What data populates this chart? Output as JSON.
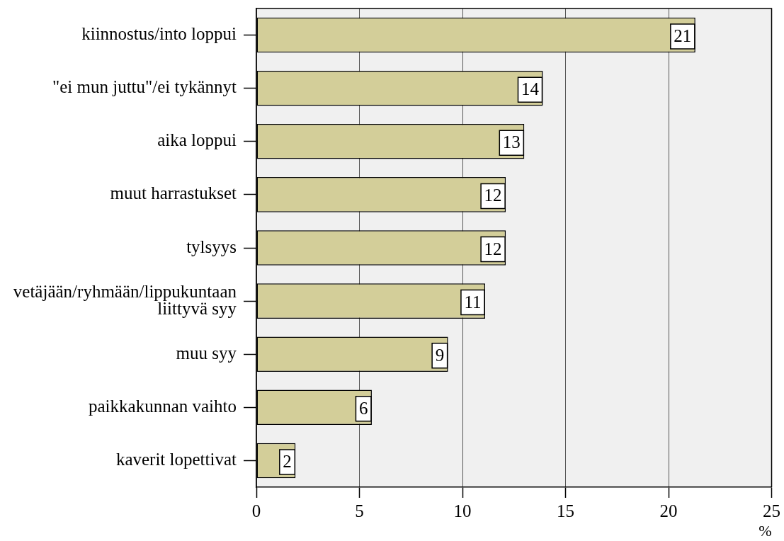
{
  "chart_data": {
    "type": "bar",
    "orientation": "horizontal",
    "categories": [
      "kiinnostus/into loppui",
      "\"ei mun juttu\"/ei tykännyt",
      "aika loppui",
      "muut harrastukset",
      "tylsyys",
      "vetäjään/ryhmään/lippukuntaan liittyvä syy",
      "muu syy",
      "paikkakunnan vaihto",
      "kaverit lopettivat"
    ],
    "values": [
      21.3,
      13.9,
      13.0,
      12.1,
      12.1,
      11.1,
      9.3,
      5.6,
      1.9
    ],
    "value_labels": [
      "21",
      "14",
      "13",
      "12",
      "12",
      "11",
      "9",
      "6",
      "2"
    ],
    "color": "#d3ce99",
    "xlabel": "%",
    "xlim": [
      0,
      25
    ],
    "xticks": [
      0,
      5,
      10,
      15,
      20,
      25
    ],
    "grid": "x"
  }
}
